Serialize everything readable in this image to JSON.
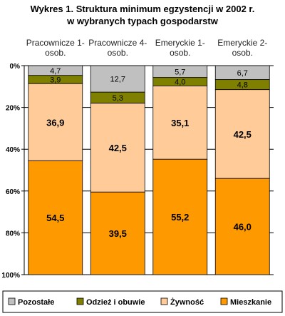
{
  "chart_data": {
    "type": "bar",
    "stacked": true,
    "orientation": "vertical",
    "y_axis_inverted": true,
    "title": "Wykres 1. Struktura minimum egzystencji w 2002 r.",
    "subtitle": "w wybranych typach gospodarstw",
    "categories": [
      [
        "Pracownicze 1-",
        "osob."
      ],
      [
        "Pracownicze 4-",
        "osob."
      ],
      [
        "Emeryckie 1-",
        "osob."
      ],
      [
        "Emeryckie 2-",
        "osob."
      ]
    ],
    "ylim": [
      0,
      100
    ],
    "yticks": [
      0,
      20,
      40,
      60,
      80,
      100
    ],
    "ytick_labels": [
      "0%",
      "20%",
      "40%",
      "60%",
      "80%",
      "100%"
    ],
    "gridlines": true,
    "legend_position": "bottom",
    "series": [
      {
        "name": "Pozostałe",
        "color": "#c0c0c0",
        "values": [
          4.7,
          12.7,
          5.7,
          6.7
        ],
        "labels": [
          "4,7",
          "12,7",
          "5,7",
          "6,7"
        ]
      },
      {
        "name": "Odzież i obuwie",
        "color": "#808000",
        "values": [
          3.9,
          5.3,
          4.0,
          4.8
        ],
        "labels": [
          "3,9",
          "5,3",
          "4,0",
          "4,8"
        ]
      },
      {
        "name": "Żywność",
        "color": "#ffcc99",
        "values": [
          36.9,
          42.5,
          35.1,
          42.5
        ],
        "labels": [
          "36,9",
          "42,5",
          "35,1",
          "42,5"
        ]
      },
      {
        "name": "Mieszkanie",
        "color": "#ff9900",
        "values": [
          54.5,
          39.5,
          55.2,
          46.0
        ],
        "labels": [
          "54,5",
          "39,5",
          "55,2",
          "46,0"
        ]
      }
    ]
  }
}
